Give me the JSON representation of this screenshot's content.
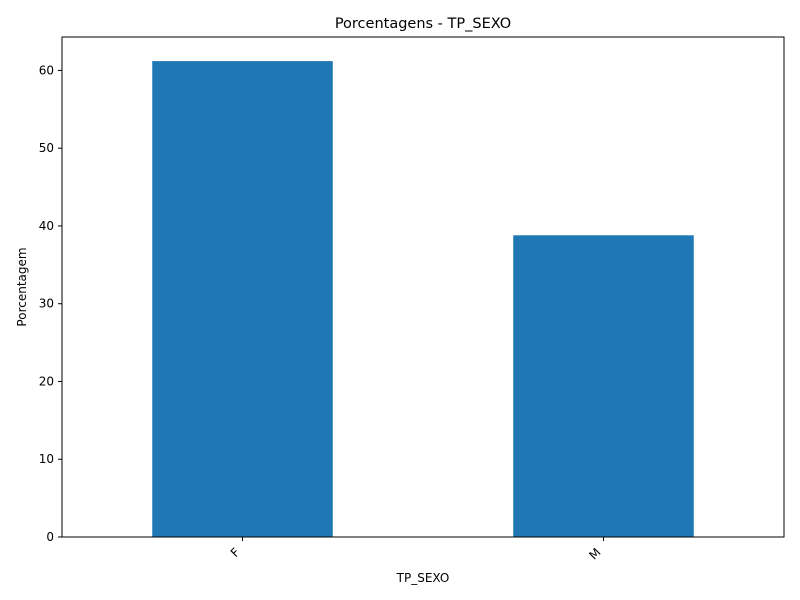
{
  "chart_data": {
    "type": "bar",
    "title": "Porcentagens - TP_SEXO",
    "xlabel": "TP_SEXO",
    "ylabel": "Porcentagem",
    "categories": [
      "F",
      "M"
    ],
    "values": [
      61.2,
      38.8
    ],
    "ylim": [
      0,
      64.3
    ],
    "yticks": [
      0,
      10,
      20,
      30,
      40,
      50,
      60
    ],
    "bar_color": "#1f77b4",
    "grid": false,
    "legend": "none"
  }
}
